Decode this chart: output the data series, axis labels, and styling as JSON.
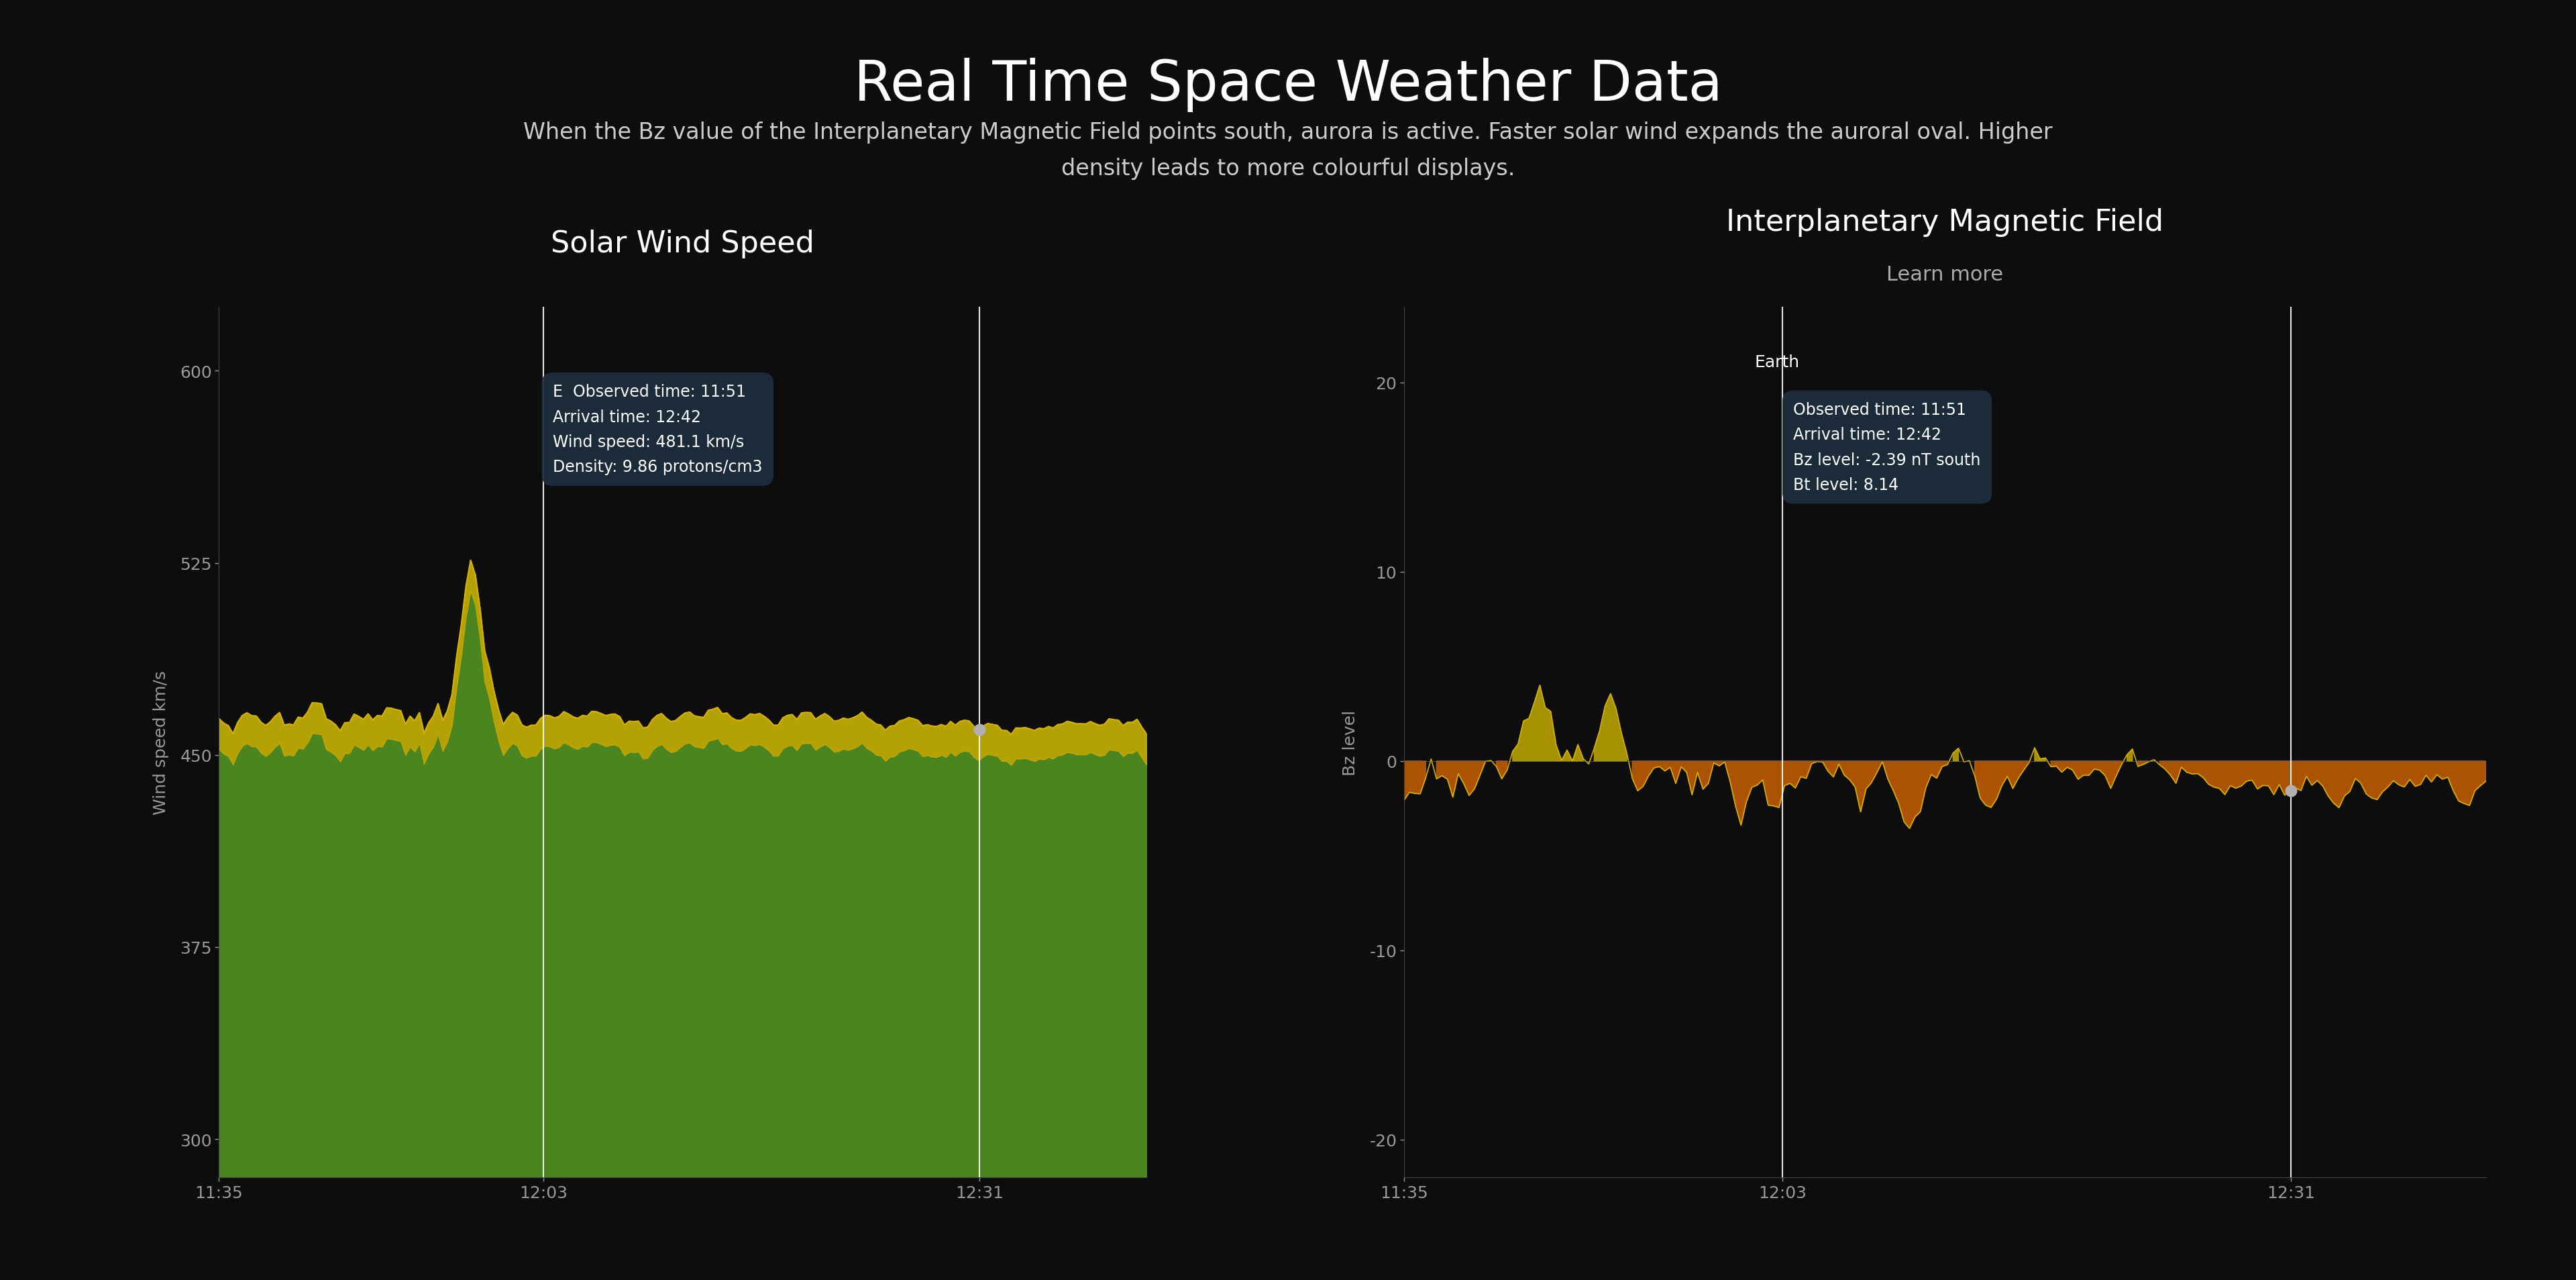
{
  "bg_color": "#0d0d0d",
  "text_color": "#ffffff",
  "title": "Real Time Space Weather Data",
  "subtitle_line1": "When the Bz value of the Interplanetary Magnetic Field points south, aurora is active. Faster solar wind expands the auroral oval. Higher",
  "subtitle_line2": "density leads to more colourful displays.",
  "title_fontsize": 60,
  "subtitle_fontsize": 24,
  "chart1_title": "Solar Wind Speed",
  "chart1_ylabel": "Wind speed km/s",
  "chart1_yticks": [
    300,
    375,
    450,
    525,
    600
  ],
  "chart1_xticks": [
    "11:35",
    "12:03",
    "12:31"
  ],
  "chart1_ylim": [
    285,
    625
  ],
  "chart2_title": "Interplanetary Magnetic Field",
  "chart2_subtitle": "Learn more",
  "chart2_ylabel": "Bz level",
  "chart2_yticks": [
    -20,
    -10,
    0,
    10,
    20
  ],
  "chart2_xticks": [
    "11:35",
    "12:03",
    "12:31"
  ],
  "chart2_ylim": [
    -22,
    24
  ],
  "tooltip1_text": "E  Observed time: 11:51\nArrival time: 12:42\nWind speed: 481.1 km/s\nDensity: 9.86 protons/cm3",
  "tooltip2_text": "Observed time: 11:51\nArrival time: 12:42\nBz level: -2.39 nT south\nBt level: 8.14",
  "tooltip_bg": "#1e2e3e",
  "tooltip_text_color": "#ffffff",
  "earth_label": "Earth",
  "fill_color_green": "#4a8520",
  "fill_color_yellow": "#c8a800",
  "line_color": "#d4b000",
  "axis_color": "#444444",
  "tick_color": "#999999",
  "vline_color": "#ffffff",
  "marker_color": "#b0b0b0",
  "bz_pos_color": "#b8a000",
  "bz_neg_color": "#c86000"
}
